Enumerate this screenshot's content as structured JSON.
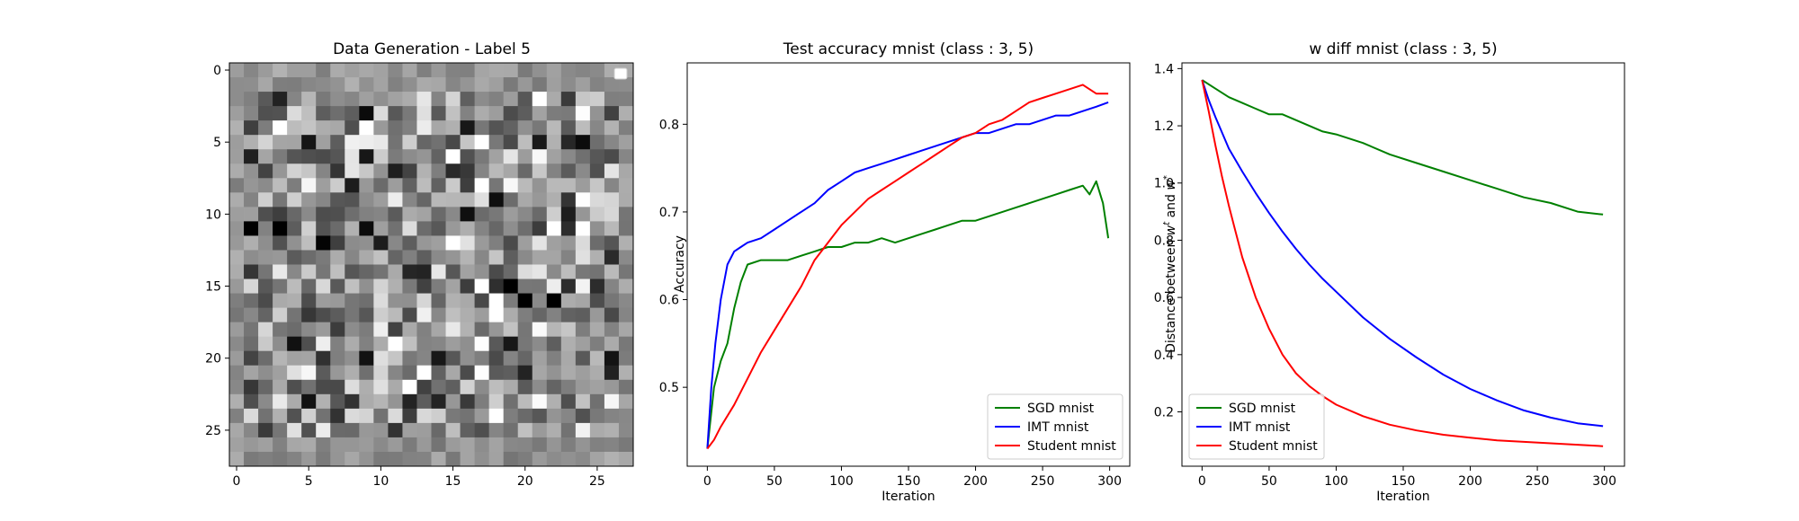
{
  "chart_data": [
    {
      "type": "heatmap",
      "title": "Data Generation - Label 5",
      "xlabel": "",
      "ylabel": "",
      "xticks": [
        "0",
        "5",
        "10",
        "15",
        "20",
        "25"
      ],
      "yticks": [
        "0",
        "5",
        "10",
        "15",
        "20",
        "25"
      ],
      "grid_size": [
        28,
        28
      ],
      "colormap": "gray",
      "value_range": [
        0,
        1
      ],
      "legend": "empty, top-right",
      "values": []
    },
    {
      "type": "line",
      "title": "Test accuracy mnist (class : 3, 5)",
      "xlabel": "Iteration",
      "ylabel": "Accuracy",
      "xlim": [
        -15,
        315
      ],
      "ylim": [
        0.41,
        0.87
      ],
      "xticks": [
        "0",
        "50",
        "100",
        "150",
        "200",
        "250",
        "300"
      ],
      "yticks": [
        "0.5",
        "0.6",
        "0.7",
        "0.8"
      ],
      "legend": "lower-right",
      "grid": false,
      "series": [
        {
          "name": "SGD mnist",
          "color": "#008000",
          "x": [
            0,
            5,
            10,
            15,
            20,
            25,
            30,
            40,
            50,
            60,
            70,
            80,
            90,
            100,
            110,
            120,
            130,
            140,
            150,
            160,
            170,
            180,
            190,
            200,
            210,
            220,
            230,
            240,
            250,
            260,
            270,
            280,
            285,
            290,
            295,
            299
          ],
          "y": [
            0.43,
            0.5,
            0.53,
            0.55,
            0.59,
            0.62,
            0.64,
            0.645,
            0.645,
            0.645,
            0.65,
            0.655,
            0.66,
            0.66,
            0.665,
            0.665,
            0.67,
            0.665,
            0.67,
            0.675,
            0.68,
            0.685,
            0.69,
            0.69,
            0.695,
            0.7,
            0.705,
            0.71,
            0.715,
            0.72,
            0.725,
            0.73,
            0.72,
            0.735,
            0.71,
            0.67
          ]
        },
        {
          "name": "IMT mnist",
          "color": "#0000ff",
          "x": [
            0,
            3,
            6,
            10,
            15,
            20,
            25,
            30,
            40,
            50,
            60,
            70,
            80,
            90,
            100,
            110,
            120,
            130,
            140,
            150,
            160,
            170,
            180,
            190,
            200,
            210,
            220,
            230,
            240,
            250,
            260,
            270,
            280,
            290,
            299
          ],
          "y": [
            0.43,
            0.5,
            0.55,
            0.6,
            0.64,
            0.655,
            0.66,
            0.665,
            0.67,
            0.68,
            0.69,
            0.7,
            0.71,
            0.725,
            0.735,
            0.745,
            0.75,
            0.755,
            0.76,
            0.765,
            0.77,
            0.775,
            0.78,
            0.785,
            0.79,
            0.79,
            0.795,
            0.8,
            0.8,
            0.805,
            0.81,
            0.81,
            0.815,
            0.82,
            0.825
          ]
        },
        {
          "name": "Student mnist",
          "color": "#ff0000",
          "x": [
            0,
            5,
            10,
            20,
            30,
            40,
            50,
            60,
            70,
            80,
            90,
            100,
            110,
            120,
            130,
            140,
            150,
            160,
            170,
            180,
            190,
            200,
            210,
            220,
            230,
            240,
            250,
            260,
            270,
            280,
            290,
            299
          ],
          "y": [
            0.43,
            0.44,
            0.455,
            0.48,
            0.51,
            0.54,
            0.565,
            0.59,
            0.615,
            0.645,
            0.665,
            0.685,
            0.7,
            0.715,
            0.725,
            0.735,
            0.745,
            0.755,
            0.765,
            0.775,
            0.785,
            0.79,
            0.8,
            0.805,
            0.815,
            0.825,
            0.83,
            0.835,
            0.84,
            0.845,
            0.835,
            0.835
          ]
        }
      ]
    },
    {
      "type": "line",
      "title": "w diff mnist (class : 3, 5)",
      "xlabel": "Iteration",
      "ylabel": "Distance between w^t and w^*",
      "xlim": [
        -15,
        315
      ],
      "ylim": [
        0.01,
        1.42
      ],
      "xticks": [
        "0",
        "50",
        "100",
        "150",
        "200",
        "250",
        "300"
      ],
      "yticks": [
        "0.2",
        "0.4",
        "0.6",
        "0.8",
        "1.0",
        "1.2",
        "1.4"
      ],
      "legend": "lower-left",
      "grid": false,
      "series": [
        {
          "name": "SGD mnist",
          "color": "#008000",
          "x": [
            0,
            10,
            20,
            30,
            40,
            50,
            60,
            70,
            80,
            90,
            100,
            120,
            140,
            160,
            180,
            200,
            220,
            240,
            260,
            280,
            299
          ],
          "y": [
            1.36,
            1.33,
            1.3,
            1.28,
            1.26,
            1.24,
            1.24,
            1.22,
            1.2,
            1.18,
            1.17,
            1.14,
            1.1,
            1.07,
            1.04,
            1.01,
            0.98,
            0.95,
            0.93,
            0.9,
            0.89
          ]
        },
        {
          "name": "IMT mnist",
          "color": "#0000ff",
          "x": [
            0,
            5,
            10,
            20,
            30,
            40,
            50,
            60,
            70,
            80,
            90,
            100,
            120,
            140,
            160,
            180,
            200,
            220,
            240,
            260,
            280,
            299
          ],
          "y": [
            1.36,
            1.29,
            1.23,
            1.12,
            1.04,
            0.965,
            0.895,
            0.83,
            0.77,
            0.715,
            0.665,
            0.62,
            0.53,
            0.455,
            0.39,
            0.33,
            0.28,
            0.24,
            0.205,
            0.18,
            0.16,
            0.15
          ]
        },
        {
          "name": "Student mnist",
          "color": "#ff0000",
          "x": [
            0,
            5,
            10,
            15,
            20,
            25,
            30,
            40,
            50,
            60,
            70,
            80,
            90,
            100,
            120,
            140,
            160,
            180,
            200,
            220,
            240,
            260,
            280,
            299
          ],
          "y": [
            1.36,
            1.25,
            1.13,
            1.02,
            0.92,
            0.83,
            0.74,
            0.6,
            0.49,
            0.4,
            0.335,
            0.29,
            0.255,
            0.225,
            0.185,
            0.155,
            0.135,
            0.12,
            0.11,
            0.1,
            0.095,
            0.09,
            0.085,
            0.08
          ]
        }
      ]
    }
  ]
}
